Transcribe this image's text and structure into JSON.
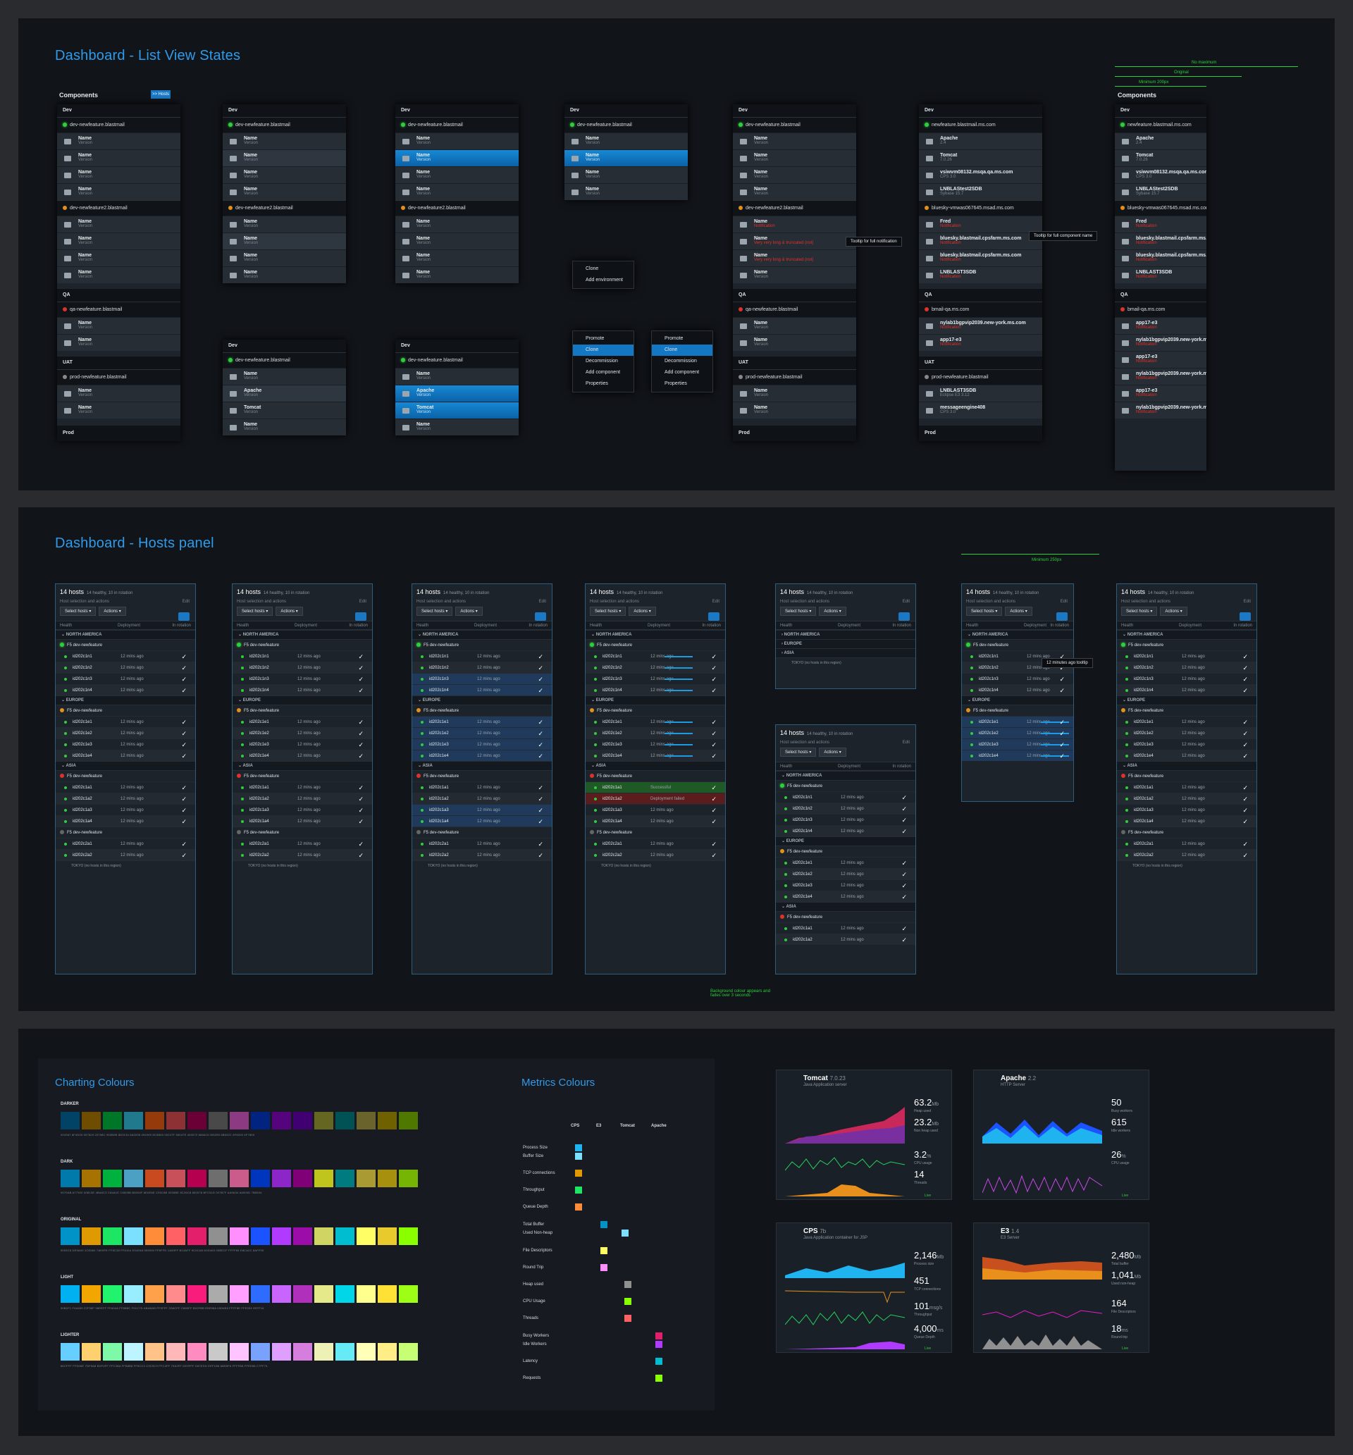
{
  "boards": {
    "list_title": "Dashboard - List View States",
    "hosts_title": "Dashboard - Hosts panel"
  },
  "list": {
    "components_label": "Components",
    "hosts_btn": ">> Hosts",
    "dev": "Dev",
    "qa": "QA",
    "uat": "UAT",
    "prod": "Prod",
    "env1": "dev-newfeature.blastmail",
    "env2": "dev-newfeature2.blastmail",
    "qa_env": "qa-newfeature.blastmail",
    "uat_env": "prod-newfeature.blastmail",
    "item_name": "Name",
    "item_version": "Version",
    "apache": "Apache",
    "tomcat": "Tomcat",
    "notification": "Notification",
    "very_long": "Very very long & truncated (not)",
    "tip1": "Tooltip for full notification",
    "tip2": "Tooltip for full component name",
    "width_no_max": "No maximum",
    "width_original": "Original",
    "width_min": "Minimum 200px",
    "env_ms": "newfeature.blastmail.ms.com",
    "vs1": "vsiwvm08132.msqa.qa.ms.com",
    "lnb": "LNBLAStest2SDB",
    "bluesky": "bluesky-vmwas067645.msad.ms.com",
    "fred": "Fred",
    "bluesky2": "bluesky.blastmail.cpsfarm.ms.com",
    "lnblast": "LNBLAST3SDB",
    "bmail": "bmail-qa.ms.com",
    "nylab": "nylab1bgpvip2039.new-york.ms.com",
    "app17": "app17-e3",
    "msgengine": "messageengine408"
  },
  "menus": {
    "clone": "Clone",
    "add_env": "Add environment",
    "promote": "Promote",
    "decommission": "Decommission",
    "add_component": "Add component",
    "properties": "Properties"
  },
  "hosts": {
    "count": "14 hosts",
    "summary": "14 healthy, 10 in rotation",
    "host_sel": "Host selection and actions",
    "edit": "Edit",
    "select_hosts": "Select hosts",
    "actions": "Actions",
    "col_health": "Health",
    "col_deploy": "Deployment",
    "col_rot": "In rotation",
    "na": "NORTH AMERICA",
    "eu": "EUROPE",
    "asia": "ASIA",
    "group": "F5 dev-newfeature",
    "ago": "12 mins ago",
    "tokyo": "TOKYO (no hosts in this region)",
    "successful": "Successful",
    "failed": "Deployment failed",
    "bg_note": "Background colour appears and fades over 3 seconds",
    "tooltip": "12 minutes ago tooltip",
    "min250": "Minimum 250px",
    "rows_na": [
      "id202c1n1",
      "id202c1n2",
      "id202c1n3",
      "id202c1n4"
    ],
    "rows_eu": [
      "id202c1e1",
      "id202c1e2",
      "id202c1e3",
      "id202c1e4"
    ],
    "rows_asia": [
      "id202c1a1",
      "id202c1a2",
      "id202c1a3",
      "id202c1a4"
    ],
    "rows_asia2": [
      "id202c2a1",
      "id202c2a2"
    ]
  },
  "colours": {
    "title": "Charting Colours",
    "metrics_title": "Metrics Colours",
    "darker": "DARKER",
    "dark": "DARK",
    "original": "ORIGINAL",
    "light": "LIGHT",
    "lighter": "LIGHTER",
    "darker_hex": [
      "#004367",
      "#6F4D00",
      "#007629",
      "#20798C",
      "#953B0B",
      "#8D3134",
      "#6A0035",
      "#494949",
      "#8C3B83",
      "#00247F",
      "#55047E",
      "#400072",
      "#666623",
      "#005255",
      "#6B632C",
      "#6F6000",
      "#4F7800"
    ],
    "dark_hex": [
      "#0079AB",
      "#A77300",
      "#00B13E",
      "#4BA0C3",
      "#C84A1E",
      "#C8505B",
      "#B5004F",
      "#6E6E6E",
      "#C95C8B",
      "#0035BE",
      "#8C26C8",
      "#800078",
      "#BFC51D",
      "#007B7F",
      "#AA9A34",
      "#A6900D",
      "#76B504"
    ],
    "original_hex": [
      "#0093C8",
      "#DE9A00",
      "#1CE663",
      "#7AE0FE",
      "#FF8C38",
      "#FF6164",
      "#E31E6A",
      "#909090",
      "#FF8FFD",
      "#1A53FF",
      "#B13AFF",
      "#9C0CA8",
      "#D0D463",
      "#00BECF",
      "#FFFF65",
      "#E8CA2C",
      "#8AFF00"
    ],
    "light_hex": [
      "#00B1F1",
      "#F4A600",
      "#22F36F",
      "#98EEFF",
      "#FFA04A",
      "#FF8B8C",
      "#F91C7D",
      "#ABABAB",
      "#FF9FFF",
      "#2D6CFF",
      "#C865FF",
      "#B02FBB",
      "#E5E98A",
      "#00D6E8",
      "#FFFF8E",
      "#FFE034",
      "#9EFF16"
    ],
    "lighter_hex": [
      "#66CFFF",
      "#FFD06E",
      "#7DF9A8",
      "#BDF4FF",
      "#FFC38A",
      "#FFB8B8",
      "#FF8CC0",
      "#C9C9C9",
      "#FFC4FF",
      "#79A2FF",
      "#DE9FFF",
      "#D67EDD",
      "#EEF1B6",
      "#66EBF6",
      "#FFFFB8",
      "#FFEE88",
      "#C7FF74"
    ],
    "mc_cols": [
      "CPS",
      "E3",
      "Tomcat",
      "Apache"
    ],
    "mc_rows": [
      "Process Size",
      "Buffer Size",
      "TCP connections",
      "Throughput",
      "Queue Depth",
      "Total Buffer",
      "Used Non-heap",
      "File Descriptors",
      "Round Trip",
      "Heap used",
      "CPU Usage",
      "Threads",
      "Busy Workers",
      "Idle Workers",
      "Latency",
      "Requests"
    ]
  },
  "metrics": {
    "tomcat": {
      "name": "Tomcat",
      "ver": "7.0.23",
      "sub": "Java Application server",
      "s1": "63.2",
      "s1u": "Mb",
      "l1": "Heap used",
      "s2": "23.2",
      "s2u": "Mb",
      "l2": "Non heap used",
      "s3": "3.2",
      "s3u": "%",
      "l3": "CPU usage",
      "s4": "14",
      "l4": "Threads"
    },
    "apache": {
      "name": "Apache",
      "ver": "2.2",
      "sub": "HTTP Server",
      "s1": "50",
      "l1": "Busy workers",
      "s2": "615",
      "l2": "Idle workers",
      "s3": "26",
      "s3u": "%",
      "l3": "CPU usage"
    },
    "cps": {
      "name": "CPS",
      "ver": "7b",
      "sub": "Java Application container for JSP",
      "s1": "2,146",
      "s1u": "Mb",
      "l1": "Process size",
      "s2": "451",
      "l2": "TCP connections",
      "s3": "101",
      "s3u": "msg/s",
      "l3": "Throughput",
      "s4": "4,000",
      "s4u": "ms",
      "l4": "Queue Depth"
    },
    "e3": {
      "name": "E3",
      "ver": "1.4",
      "sub": "E3 Server",
      "s1": "2,480",
      "s1u": "Mb",
      "l1": "Total buffer",
      "s2": "1,041",
      "s2u": "Mb",
      "l2": "Used non-heap",
      "s3": "164",
      "l3": "File Descriptors",
      "s4": "18",
      "s4u": "ms",
      "l4": "Round trip"
    },
    "live": "Live"
  }
}
